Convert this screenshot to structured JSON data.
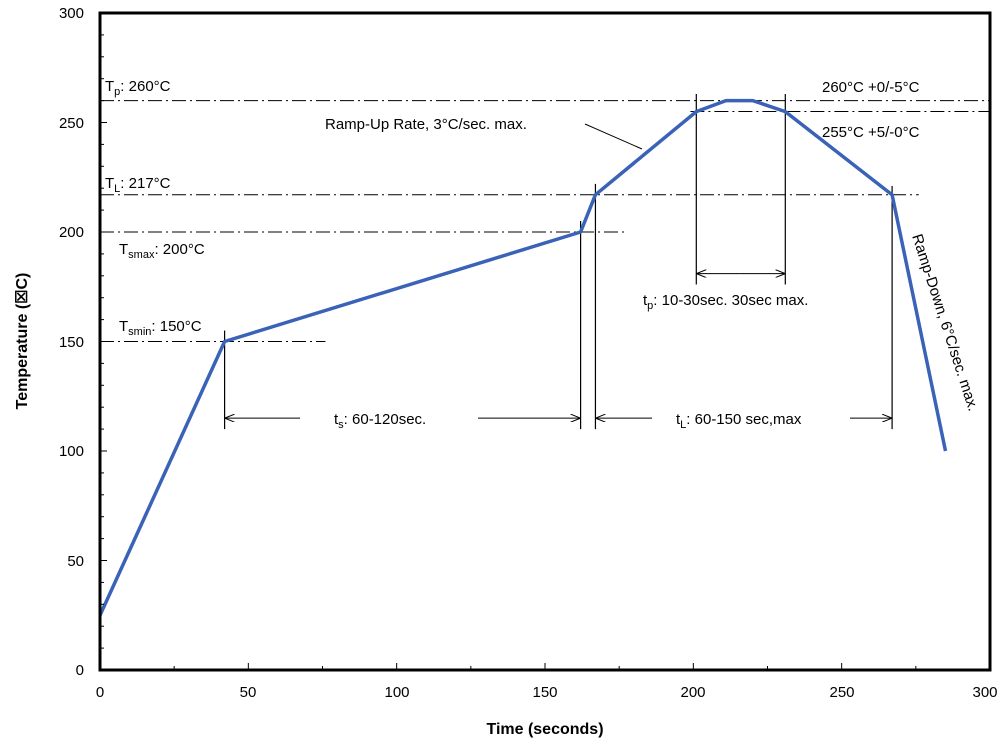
{
  "chart_data": {
    "type": "line",
    "title": "",
    "xlabel": "Time (seconds)",
    "ylabel": "Temperature (☒C)",
    "xlim": [
      0,
      300
    ],
    "ylim": [
      0,
      300
    ],
    "xticks": [
      "0",
      "50",
      "100",
      "150",
      "200",
      "250",
      "300"
    ],
    "yticks": [
      "0",
      "50",
      "100",
      "150",
      "200",
      "250",
      "300"
    ],
    "grid": false,
    "line_color": "#3a63b8",
    "series": [
      {
        "x": [
          0,
          42,
          162,
          167,
          201,
          211,
          220,
          231,
          267,
          285
        ],
        "y": [
          25,
          150,
          200,
          217,
          255,
          260,
          260,
          255,
          217,
          100
        ]
      }
    ],
    "reference_levels": [
      {
        "y": 260,
        "x_from": 0,
        "x_to": 300
      },
      {
        "y": 255,
        "x_from": 199,
        "x_to": 300
      },
      {
        "y": 217,
        "x_from": 0,
        "x_to": 276
      },
      {
        "y": 200,
        "x_from": 0,
        "x_to": 177
      },
      {
        "y": 150,
        "x_from": 0,
        "x_to": 76
      }
    ],
    "annotations": {
      "tp_main": "T",
      "tp_sub": "p",
      "tp_rest": ": 260°C",
      "tl_main": "T",
      "tl_sub": "L",
      "tl_rest": ": 217°C",
      "tsmax_main": "T",
      "tsmax_sub": "smax",
      "tsmax_rest": ": 200°C",
      "tsmin_main": "T",
      "tsmin_sub": "smin",
      "tsmin_rest": ": 150°C",
      "peak_tol": "260°C +0/-5°C",
      "peak_tol2": "255°C +5/-0°C",
      "ramp_up": "Ramp-Up Rate, 3°C/sec.  max.",
      "ramp_down": "Ramp-Down, 6°C/sec. max.",
      "ts_main": "t",
      "ts_sub": "s",
      "ts_rest": ": 60-120sec.",
      "tl_dur_main": "t",
      "tl_dur_sub": "L",
      "tl_dur_rest": ": 60-150 sec,max",
      "tp_dur_main": "t",
      "tp_dur_sub": "p",
      "tp_dur_rest": ": 10-30sec.  30sec max."
    },
    "intervals": [
      {
        "label": "ts",
        "x_from": 42,
        "x_to": 162,
        "y": 115
      },
      {
        "label": "tL",
        "x_from": 167,
        "x_to": 267,
        "y": 115
      },
      {
        "label": "tp",
        "x_from": 201,
        "x_to": 231,
        "y": 181
      }
    ]
  }
}
